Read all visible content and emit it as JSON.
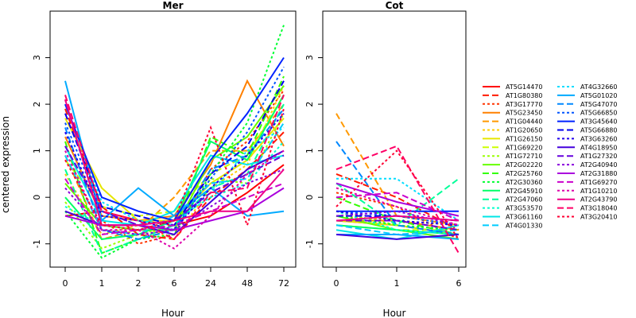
{
  "chart_data": {
    "type": "line",
    "ylabel": "centered expression",
    "panels": [
      {
        "title": "Mer",
        "xlabel": "Hour",
        "x_ticks": [
          "0",
          "1",
          "2",
          "6",
          "24",
          "48",
          "72"
        ],
        "ylim": [
          -1.5,
          4.0
        ],
        "y_ticks": [
          -1,
          0,
          1,
          2,
          3
        ]
      },
      {
        "title": "Cot",
        "xlabel": "Hour",
        "x_ticks": [
          "0",
          "1",
          "6"
        ],
        "ylim": [
          -1.5,
          4.0
        ],
        "y_ticks": [
          -1,
          0,
          1,
          2,
          3
        ]
      }
    ],
    "series": [
      {
        "name": "AT5G14470",
        "color": "#ff0000",
        "dash": "solid",
        "mer": [
          -0.4,
          -0.3,
          -0.5,
          -0.6,
          -0.4,
          0.1,
          0.7
        ],
        "cot": [
          -0.5,
          -0.6,
          -0.8
        ]
      },
      {
        "name": "AT1G80380",
        "color": "#ff1a00",
        "dash": "long",
        "mer": [
          1.9,
          -0.2,
          -0.8,
          -0.9,
          0.0,
          0.6,
          1.4
        ],
        "cot": [
          0.5,
          0.0,
          -0.7
        ]
      },
      {
        "name": "AT3G17770",
        "color": "#ff3300",
        "dash": "short",
        "mer": [
          2.1,
          -0.5,
          -1.0,
          -0.8,
          0.6,
          1.2,
          2.3
        ],
        "cot": [
          0.1,
          -0.2,
          -0.9
        ]
      },
      {
        "name": "AT5G23450",
        "color": "#ff8000",
        "dash": "solid",
        "mer": [
          1.3,
          -0.4,
          -0.5,
          -0.4,
          0.7,
          2.5,
          1.1
        ],
        "cot": [
          -0.5,
          -0.5,
          -0.7
        ]
      },
      {
        "name": "AT1G04440",
        "color": "#ff9900",
        "dash": "long",
        "mer": [
          0.9,
          -0.9,
          -0.7,
          0.0,
          1.0,
          1.0,
          2.0
        ],
        "cot": [
          1.8,
          -0.4,
          -0.6
        ]
      },
      {
        "name": "AT1G20650",
        "color": "#ffcc00",
        "dash": "short",
        "mer": [
          0.5,
          -0.8,
          -0.6,
          -0.9,
          0.2,
          0.7,
          2.4
        ],
        "cot": [
          -0.4,
          -0.5,
          -0.6
        ]
      },
      {
        "name": "AT1G26150",
        "color": "#e6e600",
        "dash": "solid",
        "mer": [
          1.7,
          0.2,
          -0.5,
          -0.5,
          0.3,
          0.8,
          1.7
        ],
        "cot": [
          -0.5,
          -0.6,
          -0.8
        ]
      },
      {
        "name": "AT1G69220",
        "color": "#ccff00",
        "dash": "long",
        "mer": [
          0.8,
          -0.2,
          -0.4,
          -0.3,
          0.5,
          0.9,
          2.2
        ],
        "cot": [
          -0.6,
          -0.7,
          -0.7
        ]
      },
      {
        "name": "AT1G72710",
        "color": "#99ff00",
        "dash": "short",
        "mer": [
          -0.1,
          -1.1,
          -0.8,
          -0.6,
          0.4,
          0.3,
          1.8
        ],
        "cot": [
          -0.3,
          -0.6,
          -0.8
        ]
      },
      {
        "name": "AT2G02220",
        "color": "#66ff00",
        "dash": "solid",
        "mer": [
          0.3,
          -0.6,
          -0.7,
          -0.7,
          0.8,
          1.3,
          2.4
        ],
        "cot": [
          -0.4,
          -0.7,
          -0.9
        ]
      },
      {
        "name": "AT2G25760",
        "color": "#33ff00",
        "dash": "long",
        "mer": [
          1.2,
          -1.2,
          -0.9,
          -0.7,
          1.3,
          0.9,
          2.6
        ],
        "cot": [
          0.0,
          -0.5,
          -0.8
        ]
      },
      {
        "name": "AT2G30360",
        "color": "#00ff33",
        "dash": "short",
        "mer": [
          -0.3,
          -1.3,
          -0.9,
          -0.8,
          0.5,
          1.6,
          3.7
        ],
        "cot": [
          -0.4,
          -0.6,
          -0.7
        ]
      },
      {
        "name": "AT2G45910",
        "color": "#00ff66",
        "dash": "solid",
        "mer": [
          0.0,
          -0.9,
          -0.8,
          -0.5,
          1.2,
          0.8,
          2.2
        ],
        "cot": [
          -0.6,
          -0.7,
          -0.8
        ]
      },
      {
        "name": "AT2G47060",
        "color": "#00ff99",
        "dash": "long",
        "mer": [
          0.6,
          -1.2,
          -0.9,
          -0.6,
          0.2,
          0.5,
          2.0
        ],
        "cot": [
          0.3,
          -0.6,
          0.4
        ]
      },
      {
        "name": "AT3G53570",
        "color": "#00ffcc",
        "dash": "short",
        "mer": [
          -0.2,
          -0.6,
          -0.7,
          -0.5,
          0.0,
          0.3,
          1.2
        ],
        "cot": [
          -0.3,
          -0.7,
          -0.8
        ]
      },
      {
        "name": "AT3G61160",
        "color": "#00e6e6",
        "dash": "solid",
        "mer": [
          1.1,
          -0.5,
          -0.6,
          -0.3,
          0.9,
          0.7,
          0.9
        ],
        "cot": [
          -0.7,
          -0.9,
          -0.6
        ]
      },
      {
        "name": "AT4G01330",
        "color": "#00ccff",
        "dash": "long",
        "mer": [
          0.9,
          -0.7,
          -0.8,
          -0.4,
          0.3,
          0.4,
          1.6
        ],
        "cot": [
          -0.6,
          -0.8,
          -0.7
        ]
      },
      {
        "name": "AT4G32660",
        "color": "#00ddff",
        "dash": "short",
        "mer": [
          2.0,
          -0.1,
          -0.5,
          -0.6,
          0.1,
          1.0,
          1.5
        ],
        "cot": [
          0.4,
          0.4,
          -0.5
        ]
      },
      {
        "name": "AT5G01020",
        "color": "#00aaff",
        "dash": "solid",
        "mer": [
          2.5,
          -0.5,
          0.2,
          -0.4,
          0.2,
          -0.4,
          -0.3
        ],
        "cot": [
          -0.8,
          -0.8,
          -0.9
        ]
      },
      {
        "name": "AT5G47070",
        "color": "#0088ff",
        "dash": "long",
        "mer": [
          1.5,
          -0.7,
          -0.9,
          -0.7,
          0.6,
          0.9,
          1.9
        ],
        "cot": [
          1.2,
          -0.6,
          -0.8
        ]
      },
      {
        "name": "AT5G66850",
        "color": "#0055ff",
        "dash": "short",
        "mer": [
          1.6,
          -0.3,
          -0.6,
          -0.7,
          0.4,
          1.4,
          2.8
        ],
        "cot": [
          -0.3,
          -0.4,
          -0.6
        ]
      },
      {
        "name": "AT3G45640",
        "color": "#0022ff",
        "dash": "solid",
        "mer": [
          2.0,
          0.0,
          -0.3,
          -0.5,
          0.8,
          1.8,
          3.0
        ],
        "cot": [
          -0.3,
          -0.3,
          -0.3
        ]
      },
      {
        "name": "AT5G66880",
        "color": "#0000ee",
        "dash": "long",
        "mer": [
          1.8,
          -0.2,
          -0.4,
          -0.6,
          0.5,
          1.1,
          2.5
        ],
        "cot": [
          -0.4,
          -0.4,
          -0.5
        ]
      },
      {
        "name": "AT3G63260",
        "color": "#2200ee",
        "dash": "short",
        "mer": [
          1.4,
          -0.4,
          -0.5,
          -0.7,
          0.2,
          0.9,
          1.8
        ],
        "cot": [
          -0.3,
          -0.5,
          -0.6
        ]
      },
      {
        "name": "AT4G18950",
        "color": "#4400dd",
        "dash": "solid",
        "mer": [
          -0.3,
          -0.6,
          -0.6,
          -0.8,
          -0.1,
          0.6,
          1.0
        ],
        "cot": [
          -0.8,
          -0.9,
          -0.8
        ]
      },
      {
        "name": "AT1G27320",
        "color": "#6600dd",
        "dash": "long",
        "mer": [
          1.1,
          -0.3,
          -0.6,
          -0.5,
          0.1,
          0.5,
          0.9
        ],
        "cot": [
          -0.5,
          -0.5,
          -0.7
        ]
      },
      {
        "name": "AT2G40940",
        "color": "#8800dd",
        "dash": "short",
        "mer": [
          0.2,
          -0.7,
          -0.8,
          -0.7,
          -0.2,
          0.3,
          0.6
        ],
        "cot": [
          -0.4,
          -0.3,
          -0.6
        ]
      },
      {
        "name": "AT2G31880",
        "color": "#aa00dd",
        "dash": "solid",
        "mer": [
          -0.4,
          -0.6,
          -0.6,
          -0.7,
          -0.5,
          -0.3,
          0.2
        ],
        "cot": [
          0.3,
          -0.1,
          -0.4
        ]
      },
      {
        "name": "AT1G69270",
        "color": "#cc00cc",
        "dash": "long",
        "mer": [
          0.4,
          -0.8,
          -0.7,
          -0.6,
          -0.3,
          0.0,
          0.3
        ],
        "cot": [
          0.0,
          0.1,
          -0.5
        ]
      },
      {
        "name": "AT1G10210",
        "color": "#dd00aa",
        "dash": "short",
        "mer": [
          1.0,
          -0.7,
          -0.7,
          -1.1,
          -0.4,
          0.5,
          1.0
        ],
        "cot": [
          0.2,
          -0.2,
          -0.6
        ]
      },
      {
        "name": "AT2G43790",
        "color": "#ee0088",
        "dash": "solid",
        "mer": [
          2.1,
          -0.6,
          -0.6,
          -0.5,
          -0.3,
          -0.3,
          0.6
        ],
        "cot": [
          -0.5,
          -0.4,
          -0.5
        ]
      },
      {
        "name": "AT3G18040",
        "color": "#ff0066",
        "dash": "long",
        "mer": [
          2.2,
          -0.3,
          -0.5,
          -0.9,
          0.1,
          0.2,
          2.2
        ],
        "cot": [
          0.6,
          1.1,
          -1.2
        ]
      },
      {
        "name": "AT3G20410",
        "color": "#ff0033",
        "dash": "short",
        "mer": [
          0.8,
          -0.6,
          -0.7,
          -0.5,
          1.5,
          -0.6,
          1.9
        ],
        "cot": [
          -0.2,
          1.0,
          -0.9
        ]
      }
    ]
  }
}
